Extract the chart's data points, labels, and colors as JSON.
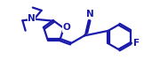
{
  "bg_color": "#ffffff",
  "line_color": "#1a1aaa",
  "line_width": 1.6,
  "figsize": [
    1.8,
    0.76
  ],
  "dpi": 100,
  "text_color": "#1a1aaa",
  "font_size": 7.0,
  "label_N": "N",
  "label_O": "O",
  "label_CN_N": "N",
  "label_F": "F",
  "xlim": [
    -0.5,
    10.5
  ],
  "ylim": [
    0.5,
    4.8
  ]
}
